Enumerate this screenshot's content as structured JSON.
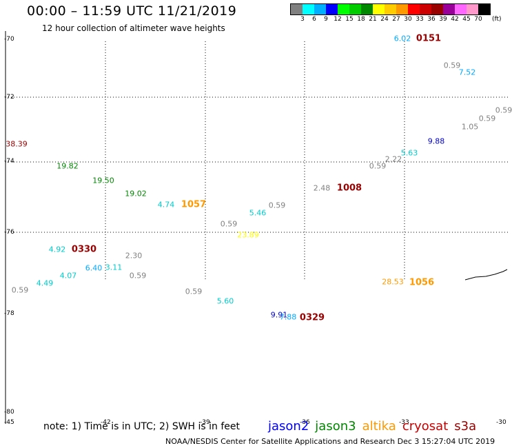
{
  "header": {
    "title": "00:00 – 11:59 UTC 11/21/2019",
    "subtitle": "12 hour collection of altimeter wave heights"
  },
  "legend": {
    "unit": "(ft)",
    "colors": [
      "#808080",
      "#00ffff",
      "#00b0ff",
      "#0000ff",
      "#00ff00",
      "#00cc00",
      "#008800",
      "#ffff00",
      "#ffcc00",
      "#ff9900",
      "#ff0000",
      "#cc0000",
      "#990000",
      "#990099",
      "#ff66ff",
      "#ff99cc",
      "#000000"
    ],
    "labels": [
      "3",
      "6",
      "9",
      "12",
      "15",
      "18",
      "21",
      "24",
      "27",
      "30",
      "33",
      "36",
      "39",
      "42",
      "45",
      "70"
    ]
  },
  "map": {
    "lat_labels": [
      "-70",
      "-72",
      "-74",
      "-76",
      "-78",
      "-80"
    ],
    "lon_labels": [
      "-45",
      "-42",
      "-39",
      "-36",
      "-33",
      "-30"
    ],
    "values": [
      {
        "text": "38.39",
        "color": "#990000"
      },
      {
        "text": "19.82",
        "color": "#008800"
      },
      {
        "text": "19.50",
        "color": "#008800"
      },
      {
        "text": "19.02",
        "color": "#008800"
      },
      {
        "text": "4.74",
        "color": "#00cccc"
      },
      {
        "text": "4.92",
        "color": "#00cccc"
      },
      {
        "text": "6.40",
        "color": "#00aaff"
      },
      {
        "text": "3.11",
        "color": "#00cccc"
      },
      {
        "text": "4.07",
        "color": "#00cccc"
      },
      {
        "text": "4.49",
        "color": "#00cccc"
      },
      {
        "text": "0.59",
        "color": "#808080"
      },
      {
        "text": "2.30",
        "color": "#808080"
      },
      {
        "text": "0.59",
        "color": "#808080"
      },
      {
        "text": "0.59",
        "color": "#808080"
      },
      {
        "text": "5.60",
        "color": "#00cccc"
      },
      {
        "text": "0.59",
        "color": "#808080"
      },
      {
        "text": "5.46",
        "color": "#00cccc"
      },
      {
        "text": "0.59",
        "color": "#808080"
      },
      {
        "text": "23.89",
        "color": "#ffff00"
      },
      {
        "text": "9.91",
        "color": "#0000cc"
      },
      {
        "text": "7.88",
        "color": "#00aaff"
      },
      {
        "text": "2.48",
        "color": "#808080"
      },
      {
        "text": "0.59",
        "color": "#808080"
      },
      {
        "text": "2.22",
        "color": "#808080"
      },
      {
        "text": "5.63",
        "color": "#00cccc"
      },
      {
        "text": "9.88",
        "color": "#0000cc"
      },
      {
        "text": "1.05",
        "color": "#808080"
      },
      {
        "text": "0.59",
        "color": "#808080"
      },
      {
        "text": "0.59",
        "color": "#808080"
      },
      {
        "text": "0.59",
        "color": "#808080"
      },
      {
        "text": "7.52",
        "color": "#00aaff"
      },
      {
        "text": "6.02",
        "color": "#00aaff"
      },
      {
        "text": "28.53",
        "color": "#ff9900"
      }
    ],
    "times": [
      {
        "text": "0151",
        "color": "#990000"
      },
      {
        "text": "1008",
        "color": "#990000"
      },
      {
        "text": "1057",
        "color": "#ff9900"
      },
      {
        "text": "0330",
        "color": "#990000"
      },
      {
        "text": "0329",
        "color": "#990000"
      },
      {
        "text": "1056",
        "color": "#ff9900"
      }
    ]
  },
  "footer": {
    "note": "note: 1) Time is in UTC; 2) SWH is in feet",
    "satellites": [
      {
        "name": "jason2",
        "color": "#0000ff"
      },
      {
        "name": "jason3",
        "color": "#008800"
      },
      {
        "name": "altika",
        "color": "#ff9900"
      },
      {
        "name": "cryosat",
        "color": "#cc0000"
      },
      {
        "name": "s3a",
        "color": "#990000"
      }
    ],
    "credit": "NOAA/NESDIS Center for Satellite Applications and Research     Dec  3 15:27:04 UTC 2019"
  }
}
